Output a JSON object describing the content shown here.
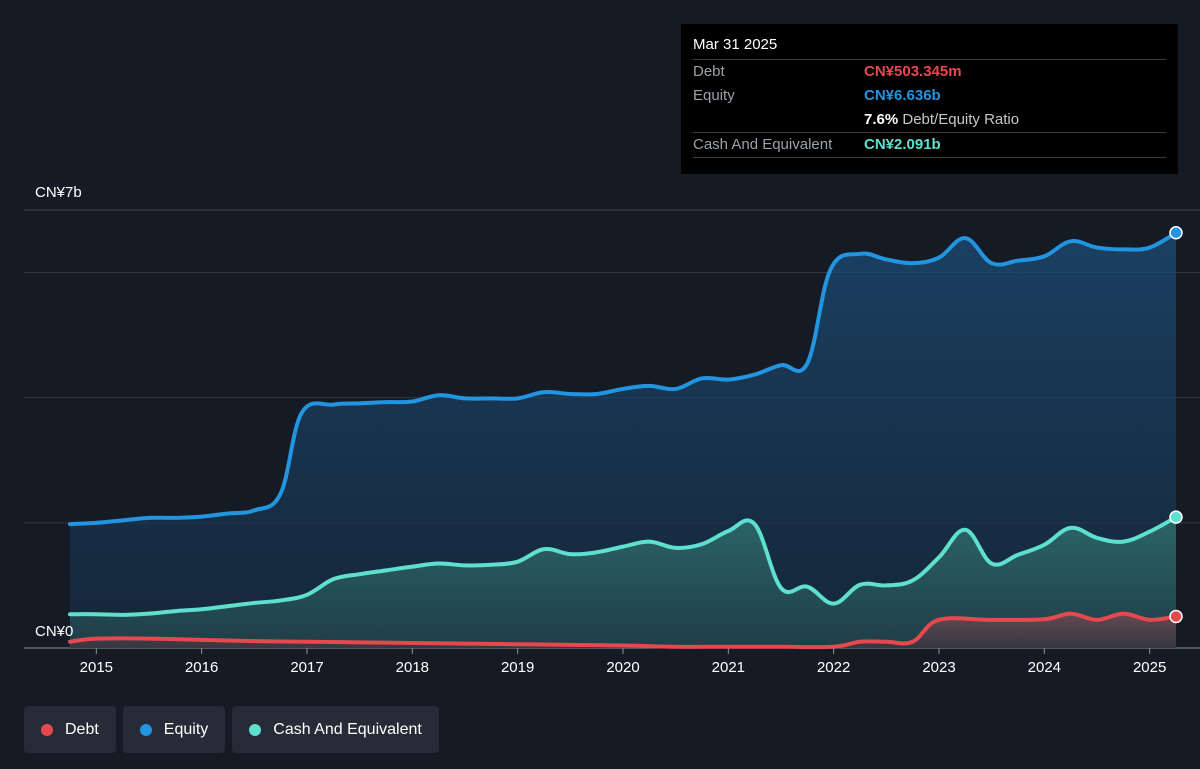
{
  "tooltip": {
    "date": "Mar 31 2025",
    "debt_label": "Debt",
    "debt_value": "CN¥503.345m",
    "equity_label": "Equity",
    "equity_value": "CN¥6.636b",
    "ratio_value": "7.6%",
    "ratio_label": "Debt/Equity Ratio",
    "cash_label": "Cash And Equivalent",
    "cash_value": "CN¥2.091b"
  },
  "legend": [
    {
      "label": "Debt",
      "color": "#e5484d"
    },
    {
      "label": "Equity",
      "color": "#2394df"
    },
    {
      "label": "Cash And Equivalent",
      "color": "#5fe0cf"
    }
  ],
  "colors": {
    "background": "#151b24",
    "debt": "#e5484d",
    "equity": "#2394df",
    "cash": "#5fe0cf",
    "grid": "#3a4048"
  },
  "chart_data": {
    "type": "area",
    "y_top_label": "CN¥7b",
    "y_bottom_label": "CN¥0",
    "ylim": [
      0,
      7
    ],
    "y_unit": "CN¥ billions",
    "xlim": [
      2014.75,
      2025.25
    ],
    "x_ticks": [
      "2015",
      "2016",
      "2017",
      "2018",
      "2019",
      "2020",
      "2021",
      "2022",
      "2023",
      "2024",
      "2025"
    ],
    "grid": true,
    "series": [
      {
        "name": "Equity",
        "points": [
          [
            2014.75,
            1.98
          ],
          [
            2015.0,
            2.0
          ],
          [
            2015.25,
            2.04
          ],
          [
            2015.5,
            2.08
          ],
          [
            2015.75,
            2.08
          ],
          [
            2016.0,
            2.1
          ],
          [
            2016.25,
            2.15
          ],
          [
            2016.5,
            2.2
          ],
          [
            2016.75,
            2.47
          ],
          [
            2016.95,
            3.76
          ],
          [
            2017.25,
            3.89
          ],
          [
            2017.5,
            3.91
          ],
          [
            2017.75,
            3.93
          ],
          [
            2018.0,
            3.94
          ],
          [
            2018.25,
            4.04
          ],
          [
            2018.5,
            3.99
          ],
          [
            2018.75,
            3.99
          ],
          [
            2019.0,
            3.99
          ],
          [
            2019.25,
            4.09
          ],
          [
            2019.5,
            4.06
          ],
          [
            2019.75,
            4.06
          ],
          [
            2020.0,
            4.14
          ],
          [
            2020.25,
            4.19
          ],
          [
            2020.5,
            4.14
          ],
          [
            2020.75,
            4.31
          ],
          [
            2021.0,
            4.29
          ],
          [
            2021.25,
            4.37
          ],
          [
            2021.5,
            4.52
          ],
          [
            2021.75,
            4.55
          ],
          [
            2021.97,
            6.05
          ],
          [
            2022.25,
            6.3
          ],
          [
            2022.5,
            6.21
          ],
          [
            2022.75,
            6.15
          ],
          [
            2023.0,
            6.24
          ],
          [
            2023.25,
            6.55
          ],
          [
            2023.5,
            6.15
          ],
          [
            2023.75,
            6.19
          ],
          [
            2024.0,
            6.26
          ],
          [
            2024.25,
            6.5
          ],
          [
            2024.5,
            6.4
          ],
          [
            2024.75,
            6.37
          ],
          [
            2025.0,
            6.4
          ],
          [
            2025.25,
            6.636
          ]
        ]
      },
      {
        "name": "Cash And Equivalent",
        "points": [
          [
            2014.75,
            0.54
          ],
          [
            2015.0,
            0.54
          ],
          [
            2015.25,
            0.53
          ],
          [
            2015.5,
            0.55
          ],
          [
            2015.75,
            0.59
          ],
          [
            2016.0,
            0.62
          ],
          [
            2016.25,
            0.67
          ],
          [
            2016.5,
            0.72
          ],
          [
            2016.75,
            0.76
          ],
          [
            2017.0,
            0.85
          ],
          [
            2017.25,
            1.1
          ],
          [
            2017.5,
            1.18
          ],
          [
            2017.75,
            1.24
          ],
          [
            2018.0,
            1.3
          ],
          [
            2018.25,
            1.35
          ],
          [
            2018.5,
            1.32
          ],
          [
            2018.75,
            1.33
          ],
          [
            2019.0,
            1.38
          ],
          [
            2019.25,
            1.58
          ],
          [
            2019.5,
            1.5
          ],
          [
            2019.75,
            1.53
          ],
          [
            2020.0,
            1.62
          ],
          [
            2020.25,
            1.7
          ],
          [
            2020.5,
            1.6
          ],
          [
            2020.75,
            1.66
          ],
          [
            2021.0,
            1.87
          ],
          [
            2021.25,
            1.98
          ],
          [
            2021.5,
            0.96
          ],
          [
            2021.75,
            0.98
          ],
          [
            2022.0,
            0.71
          ],
          [
            2022.25,
            1.01
          ],
          [
            2022.5,
            1.0
          ],
          [
            2022.75,
            1.08
          ],
          [
            2023.0,
            1.45
          ],
          [
            2023.25,
            1.89
          ],
          [
            2023.5,
            1.35
          ],
          [
            2023.75,
            1.49
          ],
          [
            2024.0,
            1.65
          ],
          [
            2024.25,
            1.92
          ],
          [
            2024.5,
            1.76
          ],
          [
            2024.75,
            1.7
          ],
          [
            2025.0,
            1.86
          ],
          [
            2025.25,
            2.091
          ]
        ]
      },
      {
        "name": "Debt",
        "points": [
          [
            2014.75,
            0.1
          ],
          [
            2015.0,
            0.15
          ],
          [
            2015.5,
            0.15
          ],
          [
            2016.0,
            0.13
          ],
          [
            2016.5,
            0.11
          ],
          [
            2017.0,
            0.1
          ],
          [
            2017.5,
            0.09
          ],
          [
            2018.0,
            0.08
          ],
          [
            2018.5,
            0.07
          ],
          [
            2019.0,
            0.06
          ],
          [
            2019.5,
            0.05
          ],
          [
            2020.0,
            0.04
          ],
          [
            2020.5,
            0.02
          ],
          [
            2021.0,
            0.02
          ],
          [
            2021.5,
            0.02
          ],
          [
            2022.0,
            0.02
          ],
          [
            2022.25,
            0.1
          ],
          [
            2022.5,
            0.1
          ],
          [
            2022.75,
            0.1
          ],
          [
            2023.0,
            0.45
          ],
          [
            2023.5,
            0.45
          ],
          [
            2024.0,
            0.46
          ],
          [
            2024.25,
            0.55
          ],
          [
            2024.5,
            0.45
          ],
          [
            2024.75,
            0.55
          ],
          [
            2025.0,
            0.45
          ],
          [
            2025.25,
            0.503
          ]
        ]
      }
    ]
  }
}
